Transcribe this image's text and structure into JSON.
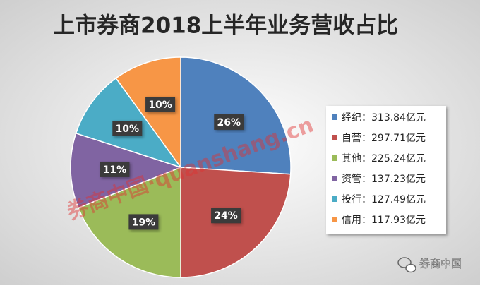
{
  "chart_data": {
    "type": "pie",
    "title": "上市券商2018上半年业务营收占比",
    "labels": [
      "经纪：313.84亿元",
      "自营：297.71亿元",
      "其他：225.24亿元",
      "资管：137.23亿元",
      "投行：127.49亿元",
      "信用：117.93亿元"
    ],
    "values": [
      26,
      24,
      19,
      11,
      10,
      10
    ],
    "value_labels": [
      "26%",
      "24%",
      "19%",
      "11%",
      "10%",
      "10%"
    ],
    "colors": [
      "#4f81bd",
      "#c0504d",
      "#9bbb59",
      "#8064a2",
      "#4bacc6",
      "#f79646"
    ],
    "legend": "right"
  },
  "watermark": "券商中国·quanshang.cn",
  "footer": "券商中国"
}
